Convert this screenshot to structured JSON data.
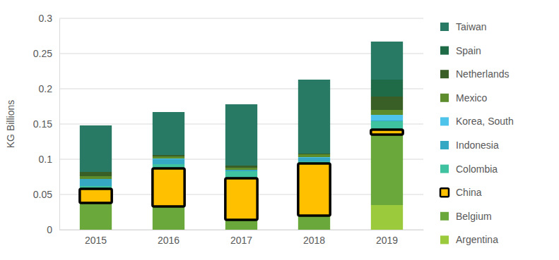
{
  "chart_data": {
    "type": "bar",
    "stacked": true,
    "grid": true,
    "legend": "right",
    "y_label": "KG Billions",
    "categories": [
      "2015",
      "2016",
      "2017",
      "2018",
      "2019"
    ],
    "ylim": [
      0,
      0.3
    ],
    "yticks": [
      0,
      0.05,
      0.1,
      0.15,
      0.2,
      0.25,
      0.3
    ],
    "series": [
      {
        "name": "Argentina",
        "color": "#9bcb3c",
        "values": [
          0,
          0,
          0,
          0,
          0.035
        ]
      },
      {
        "name": "Belgium",
        "color": "#6aa83b",
        "values": [
          0.038,
          0.033,
          0.014,
          0.02,
          0.1
        ]
      },
      {
        "name": "China",
        "color": "#ffc000",
        "line_style": "bold",
        "values": [
          0.02,
          0.054,
          0.059,
          0.074,
          0.007
        ]
      },
      {
        "name": "Colombia",
        "color": "#3ec29f",
        "values": [
          0.004,
          0.006,
          0.01,
          0.003,
          0.012
        ]
      },
      {
        "name": "Indonesia",
        "color": "#35a8c4",
        "values": [
          0.01,
          0.007,
          0.002,
          0.005,
          0.001
        ]
      },
      {
        "name": "Korea, South",
        "color": "#4fc4ea",
        "values": [
          0,
          0.001,
          0,
          0.001,
          0.008
        ]
      },
      {
        "name": "Mexico",
        "color": "#5c8c2c",
        "values": [
          0.004,
          0.003,
          0.003,
          0.004,
          0.007
        ]
      },
      {
        "name": "Netherlands",
        "color": "#3a5f26",
        "values": [
          0.006,
          0.002,
          0.003,
          0.001,
          0.019
        ]
      },
      {
        "name": "Spain",
        "color": "#1f6b48",
        "values": [
          0,
          0,
          0,
          0,
          0.024
        ]
      },
      {
        "name": "Taiwan",
        "color": "#287a64",
        "values": [
          0.066,
          0.061,
          0.087,
          0.105,
          0.054
        ]
      }
    ]
  }
}
